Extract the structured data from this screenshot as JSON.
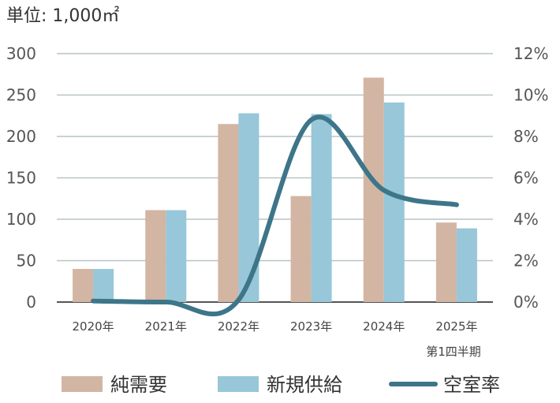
{
  "chart_data": {
    "type": "bar",
    "unit_title": "単位: 1,000㎡",
    "categories": [
      "2020年",
      "2021年",
      "2022年",
      "2023年",
      "2024年",
      "2025年"
    ],
    "category_note": "第1四半期",
    "y_left": {
      "ylim": [
        0,
        300
      ],
      "ticks": [
        "0",
        "50",
        "100",
        "150",
        "200",
        "250",
        "300"
      ]
    },
    "y_right": {
      "ylim": [
        0,
        12
      ],
      "ticks": [
        "0%",
        "2%",
        "4%",
        "6%",
        "8%",
        "10%",
        "12%"
      ]
    },
    "series": [
      {
        "name": "純需要",
        "type": "bar",
        "axis": "left",
        "color": "#d2b5a3",
        "values": [
          40,
          111,
          215,
          128,
          271,
          96
        ]
      },
      {
        "name": "新規供給",
        "type": "bar",
        "axis": "left",
        "color": "#97c7d8",
        "values": [
          40,
          111,
          228,
          227,
          241,
          89
        ]
      },
      {
        "name": "空室率",
        "type": "line",
        "axis": "right",
        "color": "#3d7589",
        "values": [
          0.05,
          0.0,
          0.1,
          8.8,
          5.4,
          4.7
        ]
      }
    ],
    "grid": true,
    "legend_position": "bottom"
  }
}
